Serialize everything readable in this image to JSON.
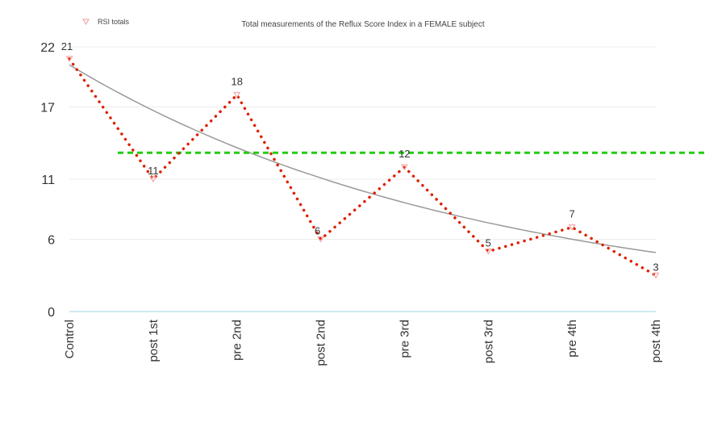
{
  "chart_data": {
    "type": "line",
    "title": "Total measurements of the Reflux Score Index in a FEMALE subject",
    "xlabel": "",
    "ylabel": "",
    "categories": [
      "Control",
      "post 1st",
      "pre 2nd",
      "post 2nd",
      "pre 3rd",
      "post 3rd",
      "pre 4th",
      "post 4th"
    ],
    "series": [
      {
        "name": "RSI totals",
        "values": [
          21,
          11,
          18,
          6,
          12,
          5,
          7,
          3
        ],
        "color": "#e02000",
        "style": "dotted",
        "marker": "open-triangle-down"
      }
    ],
    "data_labels": [
      "21",
      "11",
      "18",
      "6",
      "12",
      "5",
      "7",
      "3"
    ],
    "trendline": {
      "type": "exponential",
      "color": "#999999",
      "start": 20.5,
      "end": 4.9
    },
    "reference_line": {
      "y": 13.2,
      "color": "#22cc11",
      "style": "dashed"
    },
    "y_ticks": [
      0,
      6,
      11,
      17,
      22
    ],
    "y_tick_labels": [
      "0",
      "6",
      "11",
      "17",
      "22"
    ],
    "ylim": [
      0,
      22
    ],
    "grid": true,
    "legend": {
      "position": "top-left",
      "entries": [
        "RSI totals"
      ]
    }
  }
}
